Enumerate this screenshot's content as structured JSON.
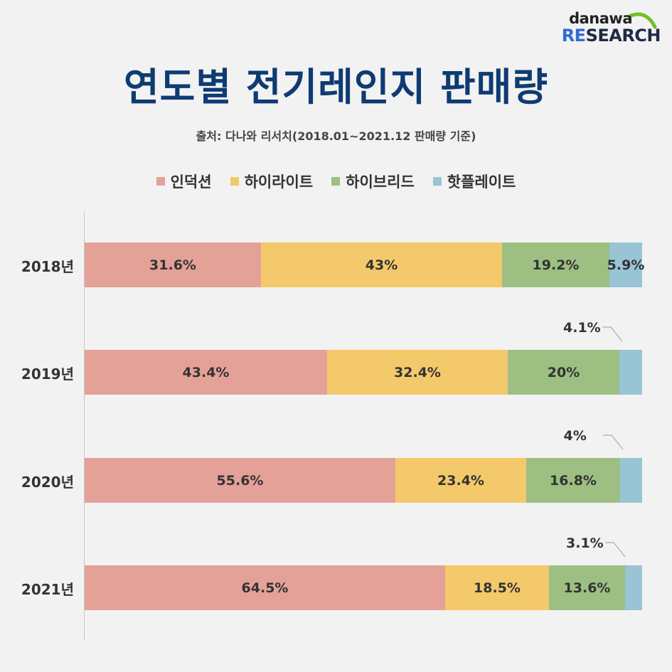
{
  "logo": {
    "top": "danawa",
    "re": "RE",
    "rest": "SEARCH",
    "swoosh_color": "#6fbf2a"
  },
  "header": {
    "title": "연도별 전기레인지 판매량",
    "subtitle": "출처: 다나와 리서치(2018.01~2021.12 판매량 기준)"
  },
  "chart_data": {
    "type": "bar",
    "orientation": "horizontal",
    "stacked": true,
    "title": "연도별 전기레인지 판매량",
    "subtitle": "출처: 다나와 리서치(2018.01~2021.12 판매량 기준)",
    "unit": "%",
    "legend_position": "top",
    "categories": [
      "2018년",
      "2019년",
      "2020년",
      "2021년"
    ],
    "series": [
      {
        "name": "인덕션",
        "color": "#e4a198",
        "values": [
          31.6,
          43.4,
          55.6,
          64.5
        ],
        "labels": [
          "31.6%",
          "43.4%",
          "55.6%",
          "64.5%"
        ]
      },
      {
        "name": "하이라이트",
        "color": "#f4c96b",
        "values": [
          43,
          32.4,
          23.4,
          18.5
        ],
        "labels": [
          "43%",
          "32.4%",
          "23.4%",
          "18.5%"
        ]
      },
      {
        "name": "하이브리드",
        "color": "#9dbf82",
        "values": [
          19.2,
          20,
          16.8,
          13.6
        ],
        "labels": [
          "19.2%",
          "20%",
          "16.8%",
          "13.6%"
        ]
      },
      {
        "name": "핫플레이트",
        "color": "#98c4d6",
        "values": [
          5.9,
          4.1,
          4,
          3.1
        ],
        "labels": [
          "5.9%",
          "4.1%",
          "4%",
          "3.1%"
        ]
      }
    ]
  }
}
